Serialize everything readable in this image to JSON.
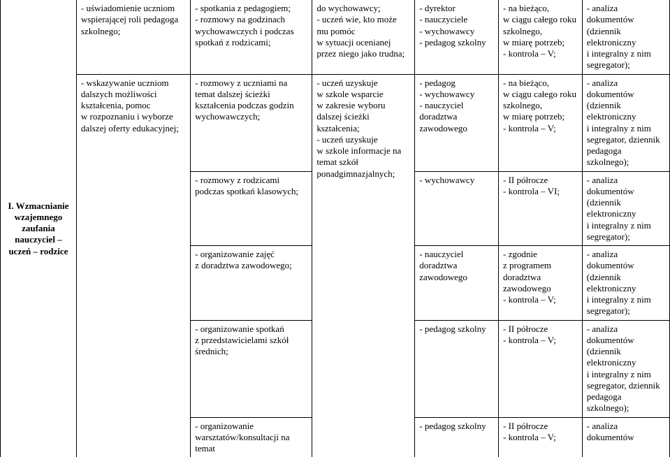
{
  "rowHeading": "I. Wzmacnianie wzajemnego zaufania nauczyciel – uczeń – rodzice",
  "row1": {
    "c1": "- uświadomienie uczniom wspierającej roli pedagoga szkolnego;",
    "c2": "- spotkania z pedagogiem;\n- rozmowy na godzinach wychowawczych i podczas spotkań z rodzicami;",
    "c3": "do wychowawcy;\n- uczeń wie, kto może mu pomóc\nw sytuacji ocenianej przez niego jako trudna;",
    "c4": "- dyrektor\n- nauczyciele\n- wychowawcy\n- pedagog szkolny",
    "c5": "- na bieżąco,\nw ciągu całego roku szkolnego,\nw miarę potrzeb;\n- kontrola – V;",
    "c6": "- analiza dokumentów (dziennik elektroniczny\ni integralny z nim segregator);"
  },
  "row2": {
    "c1": "- wskazywanie uczniom dalszych możliwości kształcenia, pomoc\nw rozpoznaniu i wyborze dalszej oferty edukacyjnej;",
    "c2a": "- rozmowy z uczniami na temat dalszej ścieżki kształcenia podczas godzin wychowawczych;",
    "c2b": "- rozmowy z rodzicami podczas spotkań klasowych;",
    "c2c": "- organizowanie zajęć\nz doradztwa zawodowego;",
    "c2d": "- organizowanie spotkań\nz przedstawicielami szkół średnich;",
    "c2e": "- organizowanie warsztatów/konsultacji na temat",
    "c3": "- uczeń uzyskuje\nw szkole wsparcie\nw zakresie wyboru dalszej ścieżki kształcenia;\n- uczeń uzyskuje\nw szkole informacje na temat szkół ponadgimnazjalnych;",
    "c4a": "- pedagog\n- wychowawcy\n- nauczyciel doradztwa zawodowego",
    "c4b": "- wychowawcy",
    "c4c": "- nauczyciel doradztwa zawodowego",
    "c4d": "- pedagog szkolny",
    "c4e": "- pedagog szkolny",
    "c5a": "- na bieżąco,\nw ciągu całego roku szkolnego,\nw miarę potrzeb;\n- kontrola – V;",
    "c5b": "- II półrocze\n- kontrola – VI;",
    "c5c": "- zgodnie\nz programem doradztwa zawodowego\n- kontrola – V;",
    "c5d": "- II półrocze\n- kontrola – V;",
    "c5e": "- II półrocze\n- kontrola – V;",
    "c6a": "- analiza dokumentów (dziennik elektroniczny\ni integralny z nim segregator, dziennik pedagoga szkolnego);",
    "c6b": "- analiza dokumentów (dziennik elektroniczny\ni integralny z nim segregator);",
    "c6c": "- analiza dokumentów (dziennik elektroniczny\ni integralny z nim segregator);",
    "c6d": "- analiza dokumentów (dziennik elektroniczny\ni integralny z nim segregator, dziennik pedagoga szkolnego);",
    "c6e": "- analiza dokumentów"
  }
}
